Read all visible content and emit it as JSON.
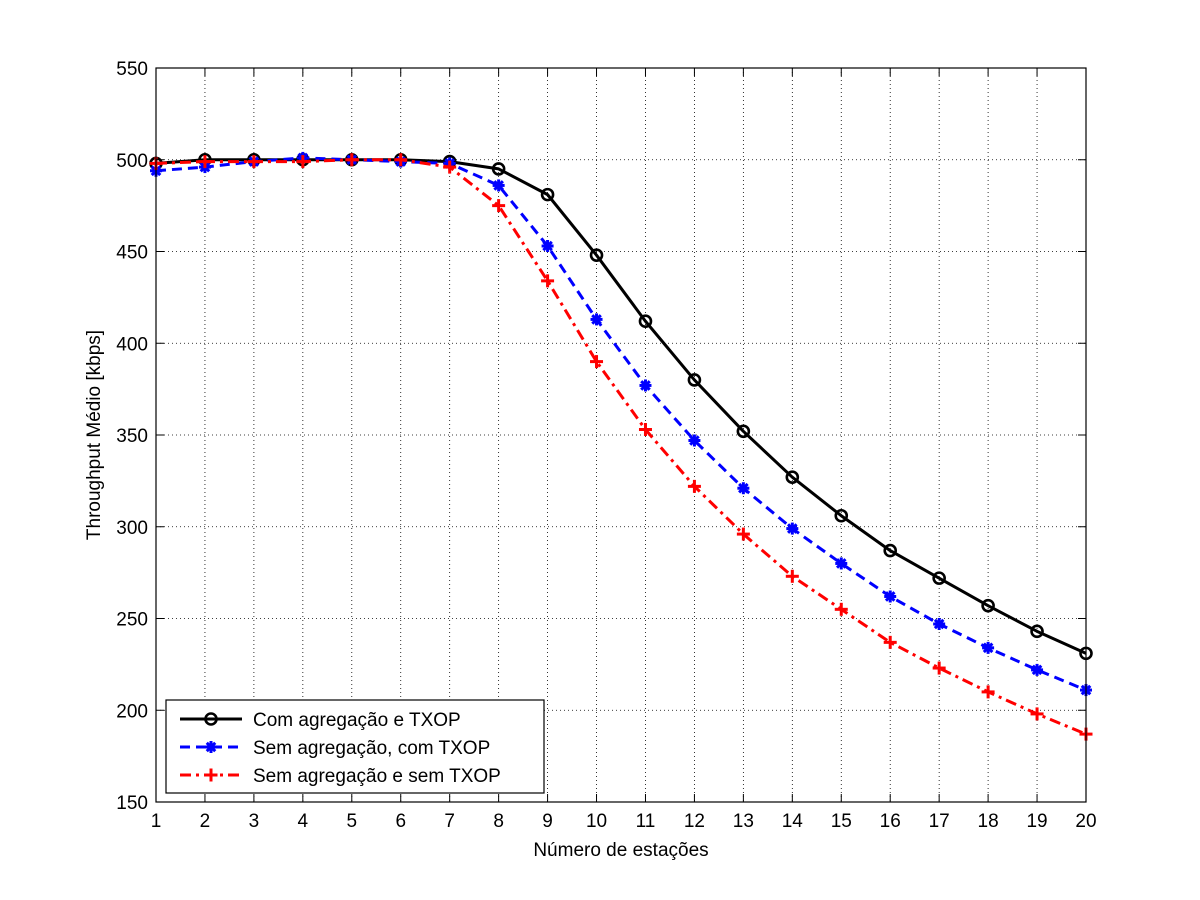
{
  "chart_data": {
    "type": "line",
    "title": "",
    "xlabel": "Número de estações",
    "ylabel": "Throughput Médio [kbps]",
    "xlim": [
      1,
      20
    ],
    "ylim": [
      150,
      550
    ],
    "xticks": [
      1,
      2,
      3,
      4,
      5,
      6,
      7,
      8,
      9,
      10,
      11,
      12,
      13,
      14,
      15,
      16,
      17,
      18,
      19,
      20
    ],
    "yticks": [
      150,
      200,
      250,
      300,
      350,
      400,
      450,
      500,
      550
    ],
    "grid": true,
    "legend_position": "bottom-left",
    "x": [
      1,
      2,
      3,
      4,
      5,
      6,
      7,
      8,
      9,
      10,
      11,
      12,
      13,
      14,
      15,
      16,
      17,
      18,
      19,
      20
    ],
    "series": [
      {
        "name": "Com agregação e TXOP",
        "color": "#000000",
        "line_style": "solid",
        "marker": "circle",
        "values": [
          498,
          500,
          500,
          500,
          500,
          500,
          499,
          495,
          481,
          448,
          412,
          380,
          352,
          327,
          306,
          287,
          272,
          257,
          243,
          231
        ]
      },
      {
        "name": "Sem agregação, com TXOP",
        "color": "#0000ff",
        "line_style": "dashed",
        "marker": "asterisk",
        "values": [
          494,
          496,
          499,
          501,
          500,
          499,
          498,
          486,
          453,
          413,
          377,
          347,
          321,
          299,
          280,
          262,
          247,
          234,
          222,
          211
        ]
      },
      {
        "name": "Sem agregação e sem TXOP",
        "color": "#ff0000",
        "line_style": "dashdot",
        "marker": "plus",
        "values": [
          498,
          499,
          499,
          499,
          500,
          500,
          496,
          475,
          434,
          390,
          353,
          322,
          296,
          273,
          255,
          237,
          223,
          210,
          198,
          187
        ]
      }
    ]
  }
}
